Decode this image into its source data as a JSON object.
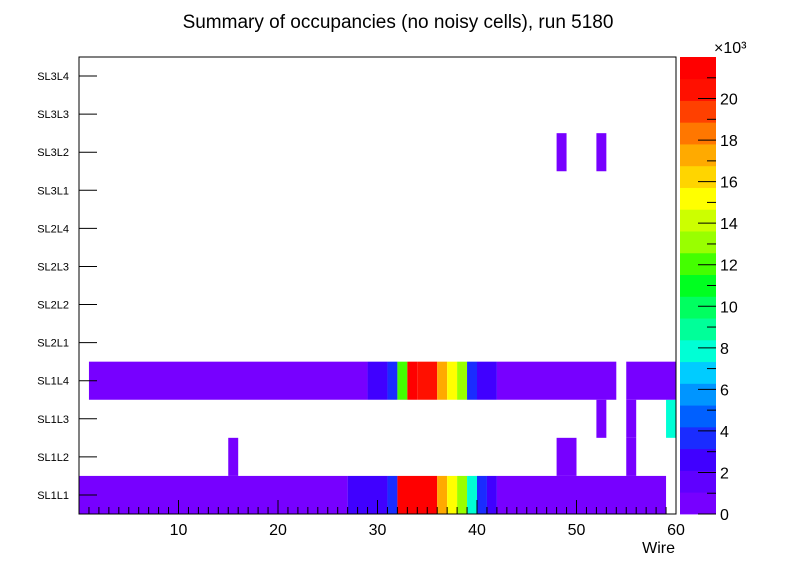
{
  "chart_data": {
    "type": "heatmap",
    "title": "Summary of occupancies (no noisy cells), run 5180",
    "xlabel": "Wire",
    "ylabel": "",
    "xlim": [
      0,
      60
    ],
    "x_ticks": [
      "10",
      "20",
      "30",
      "40",
      "50",
      "60"
    ],
    "y_categories": [
      "SL1L1",
      "SL1L2",
      "SL1L3",
      "SL1L4",
      "SL2L1",
      "SL2L2",
      "SL2L3",
      "SL2L4",
      "SL3L1",
      "SL3L2",
      "SL3L3",
      "SL3L4"
    ],
    "z_range": [
      0,
      22000
    ],
    "z_exponent_label": "×10³",
    "z_ticks": [
      "0",
      "2",
      "4",
      "6",
      "8",
      "10",
      "12",
      "14",
      "16",
      "18",
      "20"
    ],
    "palette": [
      "#7700ff",
      "#5f00ff",
      "#4000ff",
      "#1a2cff",
      "#0060ff",
      "#0095ff",
      "#00ccff",
      "#00ffd5",
      "#00ff99",
      "#00ff60",
      "#00ff20",
      "#44ff00",
      "#99ff00",
      "#ccff00",
      "#ffff00",
      "#ffd500",
      "#ffaa00",
      "#ff7700",
      "#ff4000",
      "#ff1000",
      "#ff0000"
    ],
    "cells": [
      {
        "layer": "SL1L1",
        "x0": 0,
        "x1": 27,
        "value": 900
      },
      {
        "layer": "SL1L1",
        "x0": 27,
        "x1": 30,
        "value": 2200
      },
      {
        "layer": "SL1L1",
        "x0": 30,
        "x1": 31,
        "value": 3000
      },
      {
        "layer": "SL1L1",
        "x0": 31,
        "x1": 32,
        "value": 3800
      },
      {
        "layer": "SL1L1",
        "x0": 32,
        "x1": 36,
        "value": 21500
      },
      {
        "layer": "SL1L1",
        "x0": 36,
        "x1": 37,
        "value": 17500
      },
      {
        "layer": "SL1L1",
        "x0": 37,
        "x1": 38,
        "value": 15500
      },
      {
        "layer": "SL1L1",
        "x0": 38,
        "x1": 39,
        "value": 13000
      },
      {
        "layer": "SL1L1",
        "x0": 39,
        "x1": 40,
        "value": 7500
      },
      {
        "layer": "SL1L1",
        "x0": 40,
        "x1": 41,
        "value": 3800
      },
      {
        "layer": "SL1L1",
        "x0": 41,
        "x1": 42,
        "value": 2200
      },
      {
        "layer": "SL1L1",
        "x0": 42,
        "x1": 59,
        "value": 900
      },
      {
        "layer": "SL1L2",
        "x0": 15,
        "x1": 16,
        "value": 900
      },
      {
        "layer": "SL1L2",
        "x0": 48,
        "x1": 50,
        "value": 900
      },
      {
        "layer": "SL1L2",
        "x0": 55,
        "x1": 56,
        "value": 900
      },
      {
        "layer": "SL1L3",
        "x0": 52,
        "x1": 53,
        "value": 900
      },
      {
        "layer": "SL1L3",
        "x0": 55,
        "x1": 56,
        "value": 900
      },
      {
        "layer": "SL1L3",
        "x0": 59,
        "x1": 60,
        "value": 7500
      },
      {
        "layer": "SL1L4",
        "x0": 1,
        "x1": 29,
        "value": 900
      },
      {
        "layer": "SL1L4",
        "x0": 29,
        "x1": 31,
        "value": 2200
      },
      {
        "layer": "SL1L4",
        "x0": 31,
        "x1": 32,
        "value": 3800
      },
      {
        "layer": "SL1L4",
        "x0": 32,
        "x1": 33,
        "value": 12000
      },
      {
        "layer": "SL1L4",
        "x0": 33,
        "x1": 34,
        "value": 21500
      },
      {
        "layer": "SL1L4",
        "x0": 34,
        "x1": 36,
        "value": 20000
      },
      {
        "layer": "SL1L4",
        "x0": 36,
        "x1": 37,
        "value": 17500
      },
      {
        "layer": "SL1L4",
        "x0": 37,
        "x1": 38,
        "value": 15500
      },
      {
        "layer": "SL1L4",
        "x0": 38,
        "x1": 39,
        "value": 13000
      },
      {
        "layer": "SL1L4",
        "x0": 39,
        "x1": 40,
        "value": 3800
      },
      {
        "layer": "SL1L4",
        "x0": 40,
        "x1": 42,
        "value": 2200
      },
      {
        "layer": "SL1L4",
        "x0": 42,
        "x1": 54,
        "value": 900
      },
      {
        "layer": "SL1L4",
        "x0": 55,
        "x1": 60,
        "value": 900
      },
      {
        "layer": "SL3L2",
        "x0": 48,
        "x1": 49,
        "value": 900
      },
      {
        "layer": "SL3L2",
        "x0": 52,
        "x1": 53,
        "value": 900
      }
    ]
  }
}
